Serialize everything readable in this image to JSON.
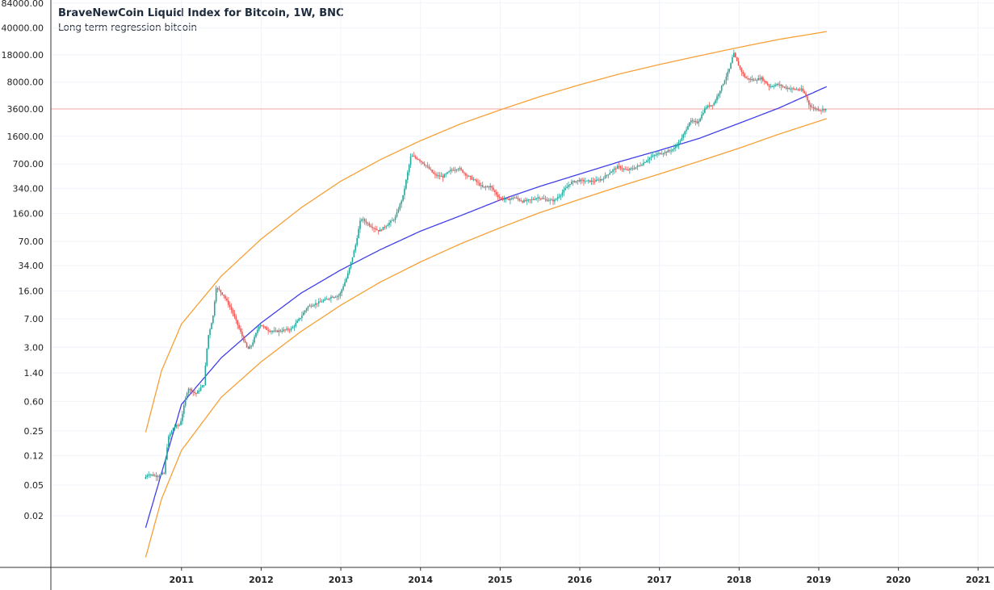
{
  "chart_data": {
    "type": "candlestick",
    "title": "BraveNewCoin Liquid Index for Bitcoin, 1W, BNC",
    "subtitle": "Long term regression bitcoin",
    "y_scale": "log",
    "ylim": [
      0.0043,
      92000
    ],
    "xlim": [
      2009.36,
      2021.2
    ],
    "y_ticks": [
      "84000.00",
      "40000.00",
      "18000.00",
      "8000.00",
      "3600.00",
      "1600.00",
      "700.00",
      "340.00",
      "160.00",
      "70.00",
      "34.00",
      "16.00",
      "7.00",
      "3.00",
      "1.40",
      "0.60",
      "0.25",
      "0.12",
      "0.05",
      "0.02"
    ],
    "x_ticks": [
      "2011",
      "2012",
      "2013",
      "2014",
      "2015",
      "2016",
      "2017",
      "2018",
      "2019",
      "2020",
      "2021"
    ],
    "price_line": 3600,
    "colors": {
      "up": "#26a69a",
      "down": "#ef5350",
      "regression": "#3f3fe8",
      "bands": "#f7a035",
      "price_line": "#f4a6a6",
      "grid": "#f0f3fa"
    },
    "regression": {
      "start": 2010.55,
      "end": 2019.1,
      "points": [
        [
          2010.55,
          0.014
        ],
        [
          2011.0,
          0.55
        ],
        [
          2011.5,
          2.2
        ],
        [
          2012.0,
          6.2
        ],
        [
          2012.5,
          15
        ],
        [
          2013.0,
          30
        ],
        [
          2013.5,
          55
        ],
        [
          2014.0,
          95
        ],
        [
          2014.5,
          150
        ],
        [
          2015.0,
          240
        ],
        [
          2015.5,
          360
        ],
        [
          2016.0,
          520
        ],
        [
          2016.5,
          750
        ],
        [
          2017.0,
          1050
        ],
        [
          2017.5,
          1500
        ],
        [
          2018.0,
          2350
        ],
        [
          2018.5,
          3700
        ],
        [
          2019.1,
          7000
        ]
      ]
    },
    "upper_band": {
      "points": [
        [
          2010.55,
          0.24
        ],
        [
          2010.75,
          1.5
        ],
        [
          2011.0,
          6
        ],
        [
          2011.5,
          25
        ],
        [
          2012.0,
          75
        ],
        [
          2012.5,
          190
        ],
        [
          2013.0,
          420
        ],
        [
          2013.5,
          800
        ],
        [
          2014.0,
          1400
        ],
        [
          2014.5,
          2300
        ],
        [
          2015.0,
          3500
        ],
        [
          2015.5,
          5200
        ],
        [
          2016.0,
          7400
        ],
        [
          2016.5,
          10200
        ],
        [
          2017.0,
          13500
        ],
        [
          2017.5,
          17500
        ],
        [
          2018.0,
          22500
        ],
        [
          2018.5,
          28500
        ],
        [
          2019.1,
          36000
        ]
      ]
    },
    "lower_band": {
      "points": [
        [
          2010.55,
          0.0058
        ],
        [
          2010.75,
          0.033
        ],
        [
          2011.0,
          0.14
        ],
        [
          2011.5,
          0.68
        ],
        [
          2012.0,
          1.95
        ],
        [
          2012.5,
          4.8
        ],
        [
          2013.0,
          10.5
        ],
        [
          2013.5,
          21
        ],
        [
          2014.0,
          38
        ],
        [
          2014.5,
          65
        ],
        [
          2015.0,
          105
        ],
        [
          2015.5,
          165
        ],
        [
          2016.0,
          245
        ],
        [
          2016.5,
          360
        ],
        [
          2017.0,
          520
        ],
        [
          2017.5,
          760
        ],
        [
          2018.0,
          1120
        ],
        [
          2018.5,
          1700
        ],
        [
          2019.1,
          2700
        ]
      ]
    },
    "price_path": [
      [
        2010.55,
        0.06
      ],
      [
        2010.6,
        0.07
      ],
      [
        2010.7,
        0.065
      ],
      [
        2010.8,
        0.07
      ],
      [
        2010.85,
        0.2
      ],
      [
        2010.92,
        0.28
      ],
      [
        2011.0,
        0.3
      ],
      [
        2011.1,
        0.9
      ],
      [
        2011.2,
        0.75
      ],
      [
        2011.3,
        1.0
      ],
      [
        2011.35,
        4
      ],
      [
        2011.42,
        8
      ],
      [
        2011.45,
        18
      ],
      [
        2011.5,
        16
      ],
      [
        2011.55,
        14
      ],
      [
        2011.65,
        9
      ],
      [
        2011.75,
        5
      ],
      [
        2011.85,
        2.8
      ],
      [
        2011.9,
        3.2
      ],
      [
        2012.0,
        6
      ],
      [
        2012.1,
        5
      ],
      [
        2012.2,
        4.8
      ],
      [
        2012.3,
        5
      ],
      [
        2012.4,
        5.2
      ],
      [
        2012.5,
        7
      ],
      [
        2012.6,
        10
      ],
      [
        2012.7,
        11
      ],
      [
        2012.8,
        12
      ],
      [
        2012.9,
        13.5
      ],
      [
        2013.0,
        14
      ],
      [
        2013.1,
        25
      ],
      [
        2013.2,
        60
      ],
      [
        2013.27,
        140
      ],
      [
        2013.35,
        120
      ],
      [
        2013.4,
        110
      ],
      [
        2013.5,
        95
      ],
      [
        2013.6,
        115
      ],
      [
        2013.7,
        140
      ],
      [
        2013.8,
        270
      ],
      [
        2013.9,
        900
      ],
      [
        2014.0,
        800
      ],
      [
        2014.1,
        650
      ],
      [
        2014.2,
        500
      ],
      [
        2014.3,
        480
      ],
      [
        2014.4,
        580
      ],
      [
        2014.5,
        620
      ],
      [
        2014.6,
        500
      ],
      [
        2014.7,
        430
      ],
      [
        2014.8,
        350
      ],
      [
        2014.9,
        360
      ],
      [
        2015.0,
        260
      ],
      [
        2015.1,
        240
      ],
      [
        2015.2,
        260
      ],
      [
        2015.3,
        230
      ],
      [
        2015.4,
        240
      ],
      [
        2015.5,
        260
      ],
      [
        2015.6,
        240
      ],
      [
        2015.7,
        235
      ],
      [
        2015.8,
        300
      ],
      [
        2015.9,
        400
      ],
      [
        2016.0,
        430
      ],
      [
        2016.1,
        420
      ],
      [
        2016.2,
        420
      ],
      [
        2016.3,
        450
      ],
      [
        2016.4,
        550
      ],
      [
        2016.5,
        650
      ],
      [
        2016.6,
        580
      ],
      [
        2016.7,
        620
      ],
      [
        2016.8,
        700
      ],
      [
        2016.9,
        850
      ],
      [
        2017.0,
        950
      ],
      [
        2017.1,
        1000
      ],
      [
        2017.2,
        1100
      ],
      [
        2017.3,
        1500
      ],
      [
        2017.4,
        2500
      ],
      [
        2017.5,
        2400
      ],
      [
        2017.6,
        3800
      ],
      [
        2017.7,
        4200
      ],
      [
        2017.8,
        7000
      ],
      [
        2017.9,
        12000
      ],
      [
        2017.95,
        19000
      ],
      [
        2018.0,
        14000
      ],
      [
        2018.05,
        11000
      ],
      [
        2018.1,
        9000
      ],
      [
        2018.2,
        8500
      ],
      [
        2018.3,
        9000
      ],
      [
        2018.4,
        7000
      ],
      [
        2018.5,
        7500
      ],
      [
        2018.6,
        6800
      ],
      [
        2018.7,
        6500
      ],
      [
        2018.8,
        6400
      ],
      [
        2018.85,
        5500
      ],
      [
        2018.9,
        4000
      ],
      [
        2018.95,
        3700
      ],
      [
        2019.0,
        3600
      ],
      [
        2019.05,
        3500
      ],
      [
        2019.1,
        3600
      ]
    ]
  }
}
